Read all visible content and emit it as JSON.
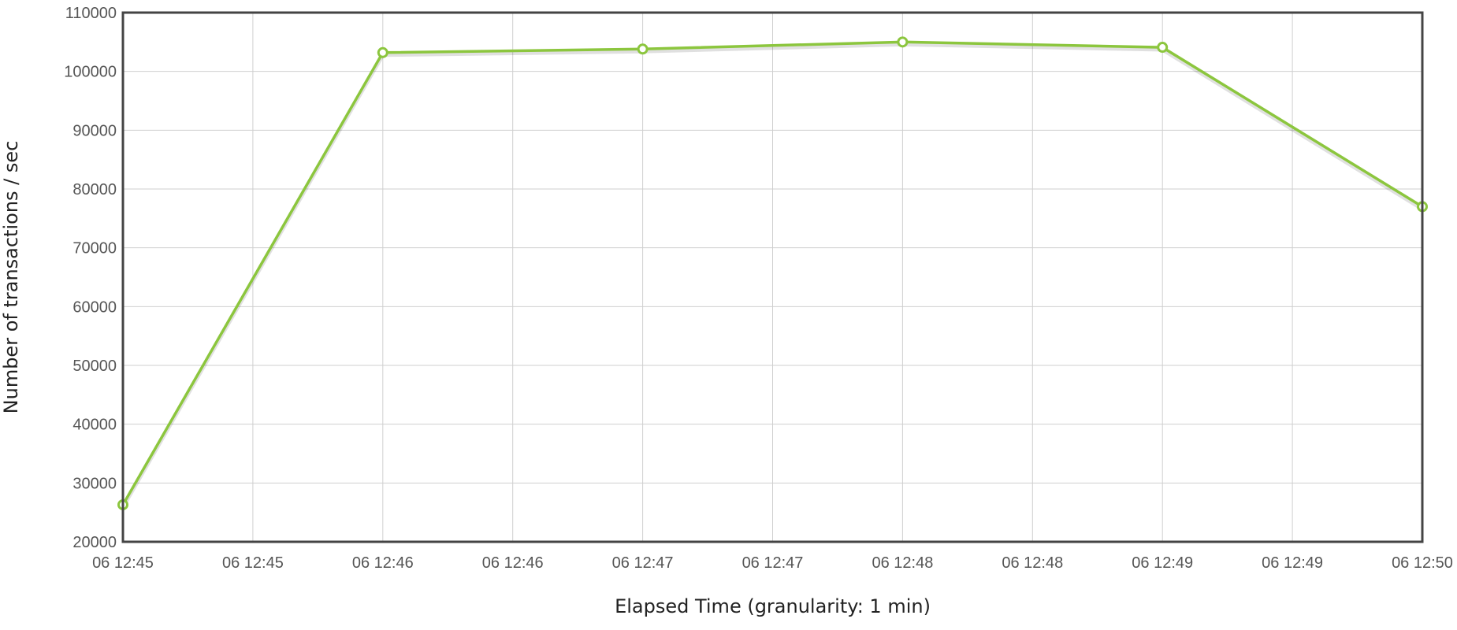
{
  "chart_data": {
    "type": "line",
    "title": "",
    "xlabel": "Elapsed Time (granularity: 1 min)",
    "ylabel": "Number of transactions / sec",
    "x_tick_labels": [
      "06 12:45",
      "06 12:45",
      "06 12:46",
      "06 12:46",
      "06 12:47",
      "06 12:47",
      "06 12:48",
      "06 12:48",
      "06 12:49",
      "06 12:49",
      "06 12:50"
    ],
    "x": [
      "06 12:45",
      "06 12:46",
      "06 12:47",
      "06 12:48",
      "06 12:49",
      "06 12:50"
    ],
    "series": [
      {
        "values": [
          26300,
          103200,
          103800,
          105000,
          104100,
          77000
        ],
        "color": "#8cc63e"
      }
    ],
    "ylim": [
      20000,
      110000
    ],
    "y_ticks": [
      20000,
      30000,
      40000,
      50000,
      60000,
      70000,
      80000,
      90000,
      100000,
      110000
    ],
    "grid": true,
    "legend": "none"
  }
}
